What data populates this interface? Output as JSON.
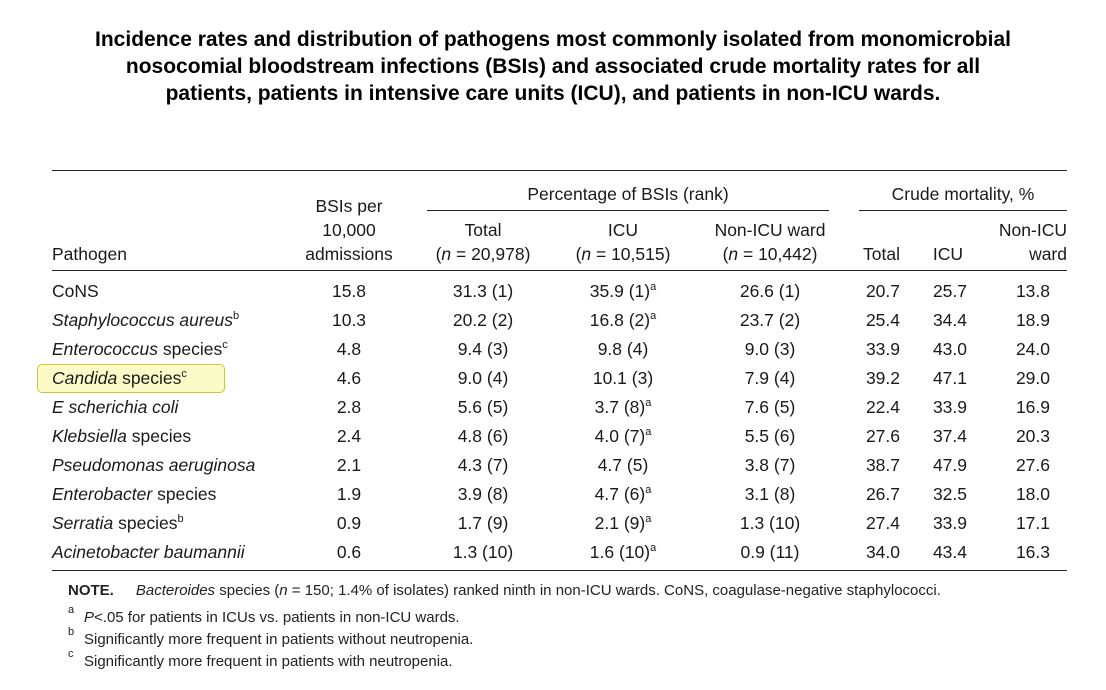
{
  "title_lines": [
    "Incidence rates and distribution of pathogens most commonly  isolated from monomicrobial",
    "nosocomial bloodstream infections (BSIs) and associated crude mortality rates for all",
    "patients, patients in intensive care units (ICU), and patients in non-ICU wards."
  ],
  "headers": {
    "pathogen": "Pathogen",
    "bsi_lines": [
      "BSIs per",
      "10,000",
      "admissions"
    ],
    "pct_group": "Percentage of BSIs (rank)",
    "pct_total": [
      "Total",
      "(n = 20,978)"
    ],
    "pct_icu": [
      "ICU",
      "(n = 10,515)"
    ],
    "pct_nonicu": [
      "Non-ICU ward",
      "(n = 10,442)"
    ],
    "mort_group": "Crude mortality, %",
    "mort_total": "Total",
    "mort_icu": "ICU",
    "mort_nonicu": [
      "Non-ICU",
      "ward"
    ]
  },
  "rows": [
    {
      "name": "CoNS",
      "suffix": "",
      "sup": "",
      "bsi": "15.8",
      "pct_total": "31.3 (1)",
      "pct_icu": "35.9 (1)",
      "pct_icu_sup": "a",
      "pct_nonicu": "26.6 (1)",
      "m_total": "20.7",
      "m_icu": "25.7",
      "m_nonicu": "13.8"
    },
    {
      "name": "Staphylococcus aureus",
      "suffix": "",
      "sup": "b",
      "bsi": "10.3",
      "pct_total": "20.2 (2)",
      "pct_icu": "16.8 (2)",
      "pct_icu_sup": "a",
      "pct_nonicu": "23.7 (2)",
      "m_total": "25.4",
      "m_icu": "34.4",
      "m_nonicu": "18.9"
    },
    {
      "name": "Enterococcus",
      "suffix": " species",
      "sup": "c",
      "bsi": "4.8",
      "pct_total": "9.4 (3)",
      "pct_icu": "9.8 (4)",
      "pct_icu_sup": "",
      "pct_nonicu": "9.0 (3)",
      "m_total": "33.9",
      "m_icu": "43.0",
      "m_nonicu": "24.0"
    },
    {
      "name": "Candida",
      "suffix": " species",
      "sup": "c",
      "bsi": "4.6",
      "pct_total": "9.0 (4)",
      "pct_icu": "10.1 (3)",
      "pct_icu_sup": "",
      "pct_nonicu": "7.9 (4)",
      "m_total": "39.2",
      "m_icu": "47.1",
      "m_nonicu": "29.0"
    },
    {
      "name": "E scherichia coli",
      "suffix": "",
      "sup": "",
      "bsi": "2.8",
      "pct_total": "5.6 (5)",
      "pct_icu": "3.7 (8)",
      "pct_icu_sup": "a",
      "pct_nonicu": "7.6 (5)",
      "m_total": "22.4",
      "m_icu": "33.9",
      "m_nonicu": "16.9"
    },
    {
      "name": "Klebsiella",
      "suffix": " species",
      "sup": "",
      "bsi": "2.4",
      "pct_total": "4.8 (6)",
      "pct_icu": "4.0 (7)",
      "pct_icu_sup": "a",
      "pct_nonicu": "5.5 (6)",
      "m_total": "27.6",
      "m_icu": "37.4",
      "m_nonicu": "20.3"
    },
    {
      "name": "Pseudomonas aeruginosa",
      "suffix": "",
      "sup": "",
      "bsi": "2.1",
      "pct_total": "4.3 (7)",
      "pct_icu": "4.7 (5)",
      "pct_icu_sup": "",
      "pct_nonicu": "3.8 (7)",
      "m_total": "38.7",
      "m_icu": "47.9",
      "m_nonicu": "27.6"
    },
    {
      "name": "Enterobacter",
      "suffix": " species",
      "sup": "",
      "bsi": "1.9",
      "pct_total": "3.9 (8)",
      "pct_icu": "4.7 (6)",
      "pct_icu_sup": "a",
      "pct_nonicu": "3.1 (8)",
      "m_total": "26.7",
      "m_icu": "32.5",
      "m_nonicu": "18.0"
    },
    {
      "name": "Serratia",
      "suffix": " species",
      "sup": "b",
      "bsi": "0.9",
      "pct_total": "1.7 (9)",
      "pct_icu": "2.1 (9)",
      "pct_icu_sup": "a",
      "pct_nonicu": "1.3 (10)",
      "m_total": "27.4",
      "m_icu": "33.9",
      "m_nonicu": "17.1"
    },
    {
      "name": "Acinetobacter baumannii",
      "suffix": "",
      "sup": "",
      "bsi": "0.6",
      "pct_total": "1.3 (10)",
      "pct_icu": "1.6 (10)",
      "pct_icu_sup": "a",
      "pct_nonicu": "0.9 (11)",
      "m_total": "34.0",
      "m_icu": "43.4",
      "m_nonicu": "16.3"
    }
  ],
  "highlighted_row": "Candida species",
  "note": {
    "label": "NOTE.",
    "text_italic": "Bacteroides",
    "text_a": " species (",
    "text_n": "n",
    "text_b": " = 150; 1.4% of isolates) ranked ninth in non-ICU wards. CoNS, coagulase-negative staphylococci."
  },
  "footnotes": [
    {
      "mark": "a",
      "italic": "P",
      "text": "<.05 for patients in ICUs vs. patients in non-ICU wards."
    },
    {
      "mark": "b",
      "italic": "",
      "text": "Significantly more frequent in patients without neutropenia."
    },
    {
      "mark": "c",
      "italic": "",
      "text": "Significantly more frequent in patients with neutropenia."
    }
  ]
}
